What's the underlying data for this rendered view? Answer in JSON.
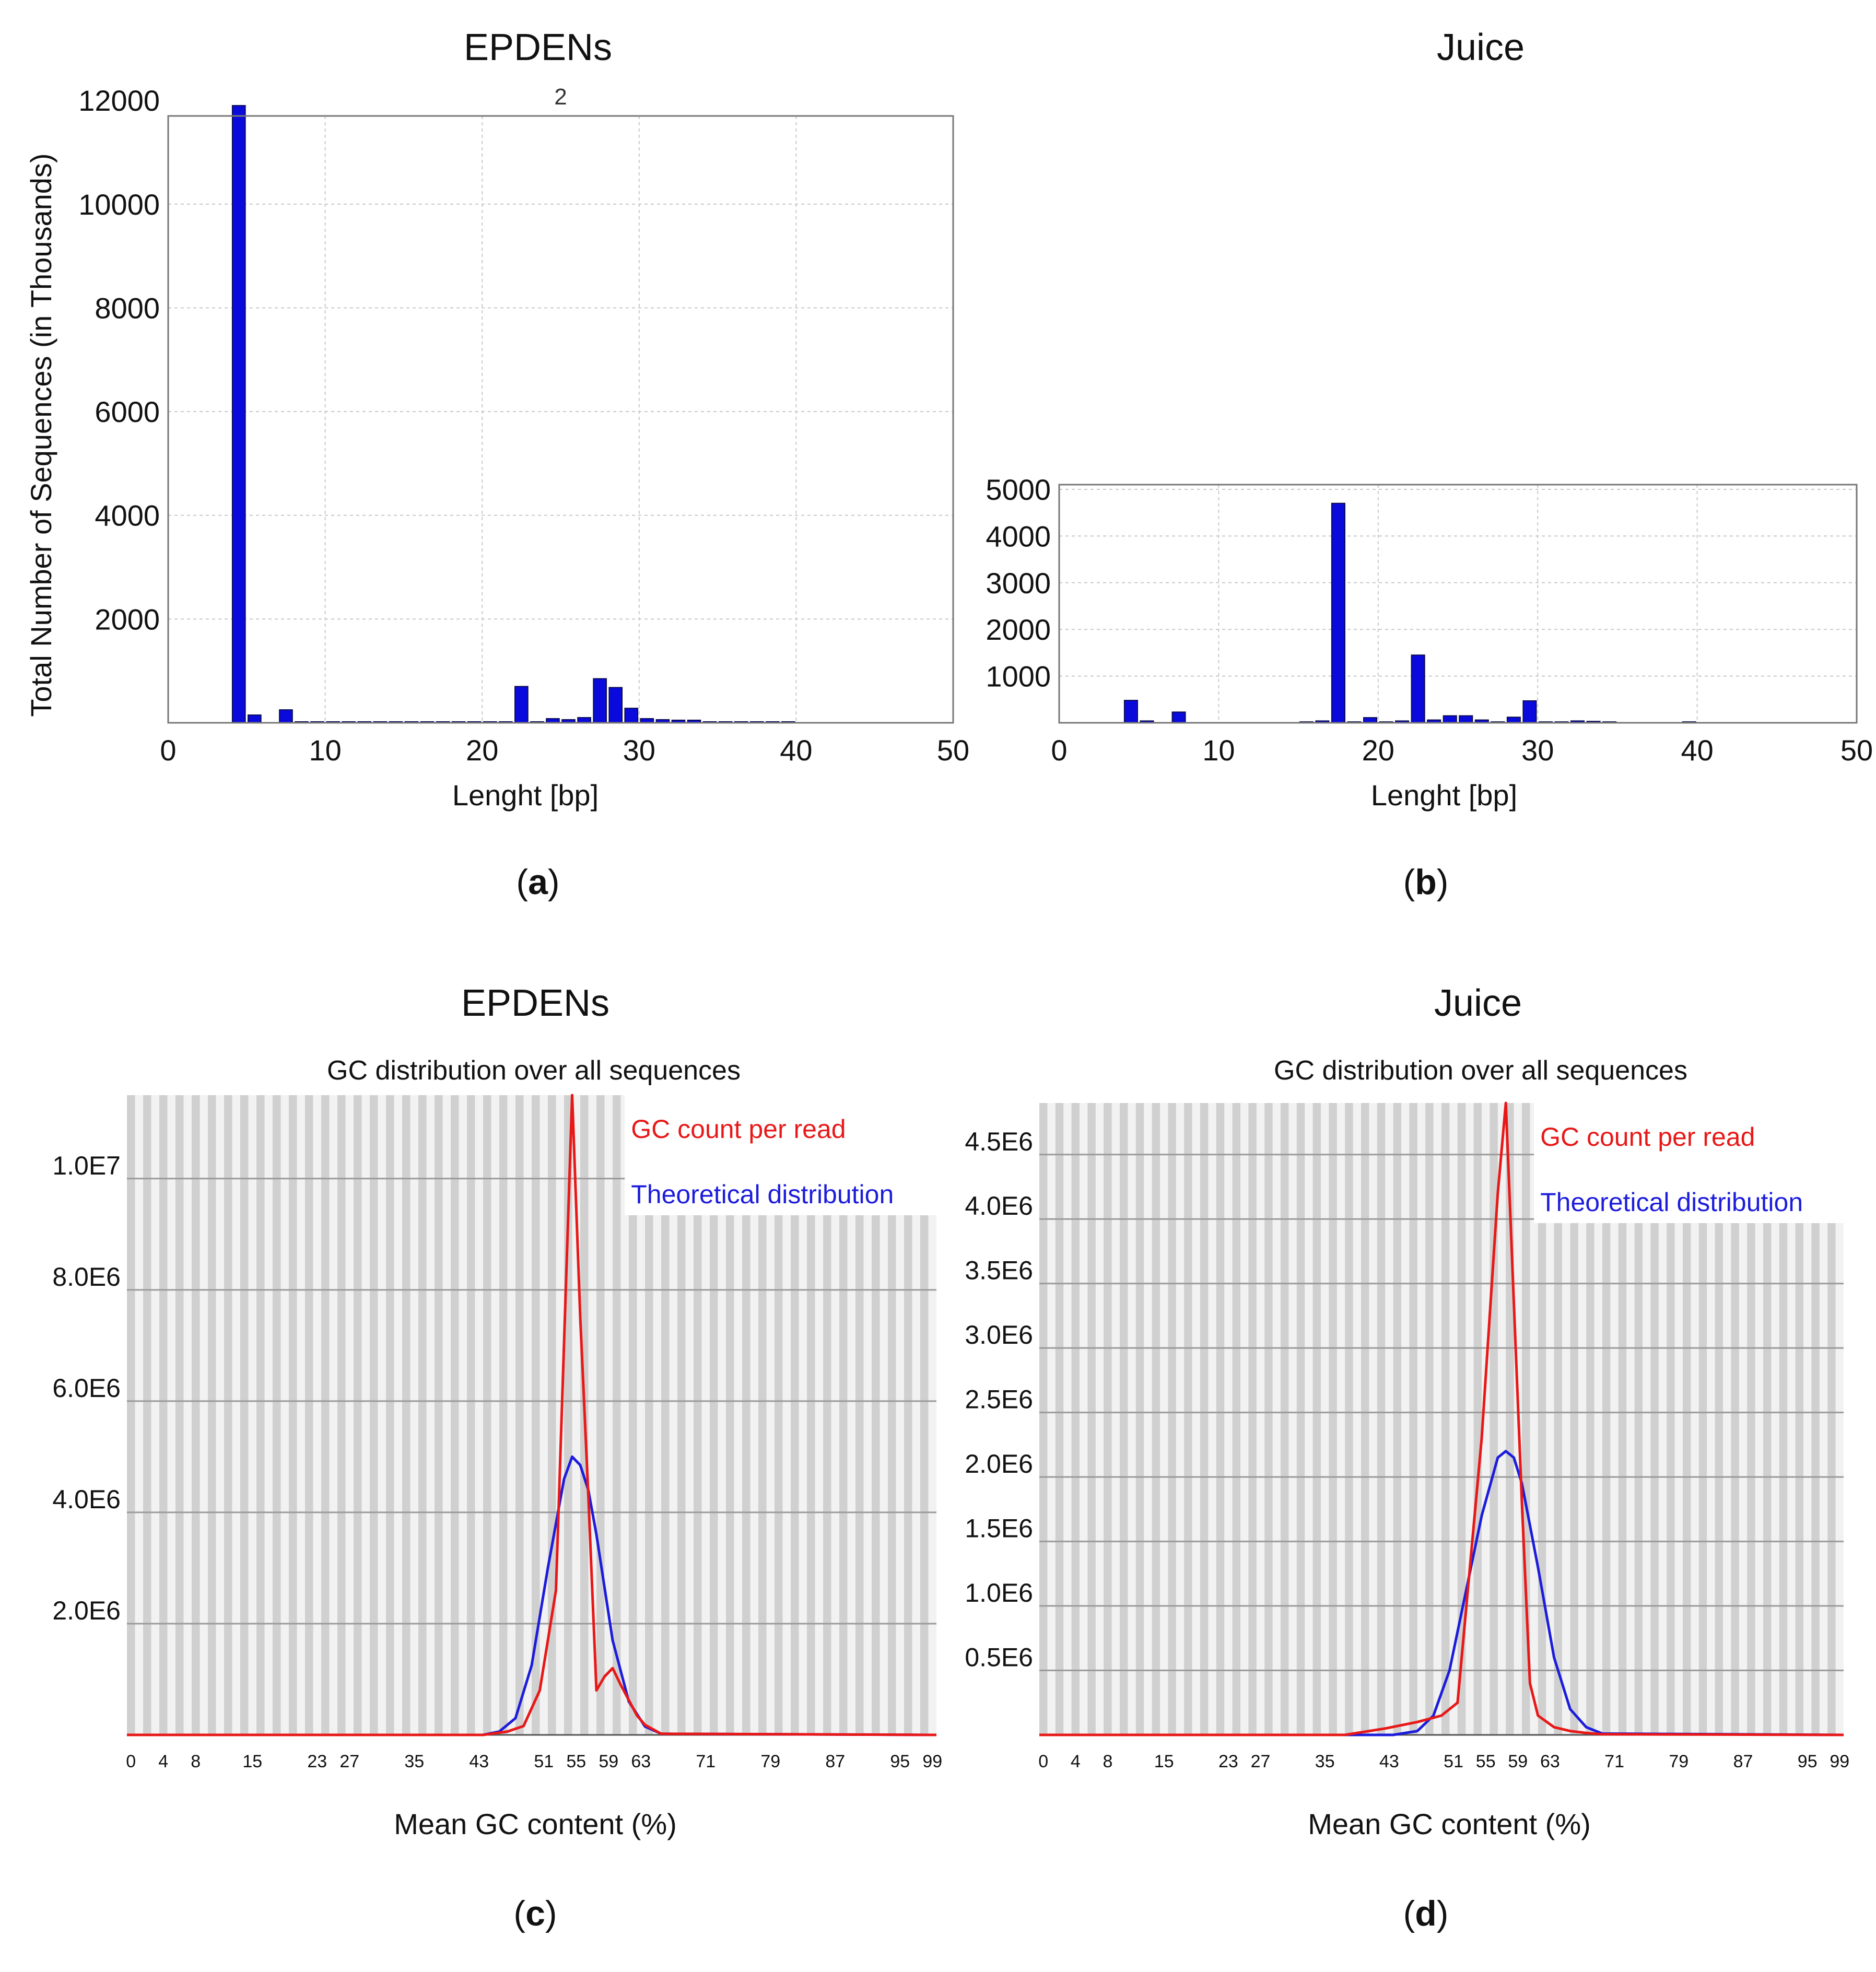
{
  "chart_data": [
    {
      "id": "a",
      "type": "bar",
      "title": "EPDENs",
      "subtitle": "2",
      "panel_label": "a",
      "xlabel": "Lenght [bp]",
      "ylabel": "Total Number of Sequences (in Thousands)",
      "xlim": [
        0,
        50
      ],
      "ylim": [
        0,
        11700
      ],
      "xticks": [
        0,
        10,
        20,
        30,
        40,
        50
      ],
      "yticks": [
        2000,
        4000,
        6000,
        8000,
        10000,
        12000
      ],
      "grid": true,
      "x": [
        5,
        6,
        8,
        9,
        10,
        11,
        12,
        13,
        14,
        15,
        16,
        17,
        18,
        19,
        20,
        21,
        22,
        23,
        24,
        25,
        26,
        27,
        28,
        29,
        30,
        31,
        32,
        33,
        34,
        35,
        36,
        37,
        38,
        39,
        40
      ],
      "values": [
        11900,
        150,
        250,
        20,
        20,
        20,
        20,
        20,
        20,
        20,
        20,
        20,
        20,
        20,
        20,
        20,
        20,
        700,
        20,
        80,
        60,
        100,
        850,
        680,
        280,
        80,
        60,
        50,
        50,
        20,
        20,
        20,
        20,
        20,
        20
      ]
    },
    {
      "id": "b",
      "type": "bar",
      "title": "Juice",
      "panel_label": "b",
      "xlabel": "Lenght [bp]",
      "ylabel": "",
      "xlim": [
        0,
        50
      ],
      "ylim": [
        0,
        5100
      ],
      "xticks": [
        0,
        10,
        20,
        30,
        40,
        50
      ],
      "yticks": [
        1000,
        2000,
        3000,
        4000,
        5000
      ],
      "grid": true,
      "x": [
        5,
        6,
        8,
        16,
        17,
        18,
        19,
        20,
        21,
        22,
        23,
        24,
        25,
        26,
        27,
        28,
        29,
        30,
        31,
        32,
        33,
        34,
        35,
        40
      ],
      "values": [
        480,
        40,
        230,
        20,
        40,
        4700,
        20,
        110,
        20,
        40,
        1450,
        60,
        150,
        150,
        60,
        20,
        120,
        470,
        20,
        20,
        40,
        30,
        20,
        20
      ]
    },
    {
      "id": "c",
      "type": "line",
      "title": "EPDENs",
      "subtitle": "GC distribution over all sequences",
      "panel_label": "c",
      "xlabel": "Mean GC content (%)",
      "ylabel": "",
      "xlim": [
        0,
        100
      ],
      "ylim": [
        0,
        11500000
      ],
      "xticks": [
        0,
        4,
        8,
        15,
        23,
        27,
        35,
        43,
        51,
        55,
        59,
        63,
        71,
        79,
        87,
        95,
        99
      ],
      "yticks": [
        2000000,
        4000000,
        6000000,
        8000000,
        10000000
      ],
      "ytick_labels": [
        "2.0E6",
        "4.0E6",
        "6.0E6",
        "8.0E6",
        "1.0E7"
      ],
      "legend_position": "top-right",
      "series": [
        {
          "name": "GC count per read",
          "color": "#e81818",
          "x": [
            0,
            44,
            47,
            49,
            51,
            53,
            55,
            56,
            57,
            58,
            59,
            60,
            61,
            63,
            64,
            66,
            100
          ],
          "values": [
            0,
            0,
            60000,
            160000,
            800000,
            2600000,
            11500000,
            7500000,
            4300000,
            800000,
            1050000,
            1200000,
            900000,
            350000,
            180000,
            20000,
            0
          ]
        },
        {
          "name": "Theoretical distribution",
          "color": "#1c1cdc",
          "x": [
            0,
            44,
            46,
            48,
            50,
            52,
            54,
            55,
            56,
            57,
            58,
            60,
            62,
            64,
            66,
            100
          ],
          "values": [
            0,
            0,
            60000,
            300000,
            1250000,
            3000000,
            4600000,
            5000000,
            4850000,
            4400000,
            3600000,
            1700000,
            600000,
            150000,
            20000,
            0
          ]
        }
      ]
    },
    {
      "id": "d",
      "type": "line",
      "title": "Juice",
      "subtitle": "GC distribution over all sequences",
      "panel_label": "d",
      "xlabel": "Mean GC content (%)",
      "ylabel": "",
      "xlim": [
        0,
        100
      ],
      "ylim": [
        0,
        4900000
      ],
      "xticks": [
        0,
        4,
        8,
        15,
        23,
        27,
        35,
        43,
        51,
        55,
        59,
        63,
        71,
        79,
        87,
        95,
        99
      ],
      "yticks": [
        500000,
        1000000,
        1500000,
        2000000,
        2500000,
        3000000,
        3500000,
        4000000,
        4500000
      ],
      "ytick_labels": [
        "0.5E6",
        "1.0E6",
        "1.5E6",
        "2.0E6",
        "2.5E6",
        "3.0E6",
        "3.5E6",
        "4.0E6",
        "4.5E6"
      ],
      "legend_position": "top-right",
      "series": [
        {
          "name": "GC count per read",
          "color": "#e81818",
          "x": [
            0,
            38,
            43,
            47,
            50,
            52,
            55,
            57,
            58,
            60,
            61,
            62,
            64,
            66,
            68,
            70,
            100
          ],
          "values": [
            0,
            0,
            50000,
            100000,
            150000,
            250000,
            2300000,
            4200000,
            4900000,
            1800000,
            400000,
            150000,
            60000,
            30000,
            15000,
            5000,
            0
          ]
        },
        {
          "name": "Theoretical distribution",
          "color": "#1c1cdc",
          "x": [
            0,
            44,
            47,
            49,
            51,
            53,
            55,
            57,
            58,
            59,
            60,
            62,
            64,
            66,
            68,
            70,
            100
          ],
          "values": [
            0,
            0,
            30000,
            150000,
            500000,
            1100000,
            1700000,
            2150000,
            2200000,
            2150000,
            1950000,
            1300000,
            600000,
            200000,
            60000,
            10000,
            0
          ]
        }
      ]
    }
  ]
}
